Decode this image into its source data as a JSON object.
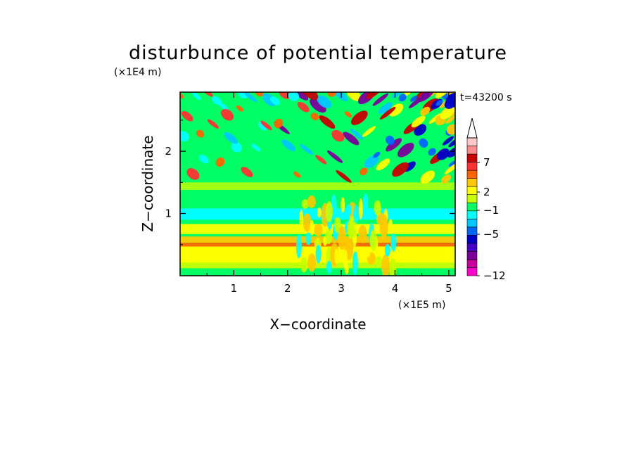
{
  "chart_data": {
    "type": "heatmap",
    "title": "disturbunce of potential temperature",
    "xlabel": "X−coordinate",
    "ylabel": "Z−coordinate",
    "x_scale_label": "(×1E5 m)",
    "y_scale_label": "(×1E4 m)",
    "time_label": "t=43200 s",
    "xlim": [
      0,
      5.12
    ],
    "ylim": [
      0,
      2.95
    ],
    "x_ticks": [
      "1",
      "2",
      "3",
      "4",
      "5"
    ],
    "y_ticks": [
      "1",
      "2"
    ],
    "colorbar": {
      "labels": [
        "7",
        "2",
        "−1",
        "−5",
        "−12"
      ],
      "colors": [
        "#ff00c8",
        "#c8009b",
        "#7b009b",
        "#4600c8",
        "#0000c8",
        "#0064ff",
        "#00c8ff",
        "#00ffff",
        "#00ff64",
        "#c8ff00",
        "#ffff00",
        "#ffc800",
        "#ff6400",
        "#ff3232",
        "#c80000",
        "#ff8c8c",
        "#ffc8c8"
      ]
    },
    "field_description": "wave-like alternating warm/cold disturbance pattern in the upper layer, diverging from the centre near x=3.5, with horizontal warm bands near the bottom"
  }
}
